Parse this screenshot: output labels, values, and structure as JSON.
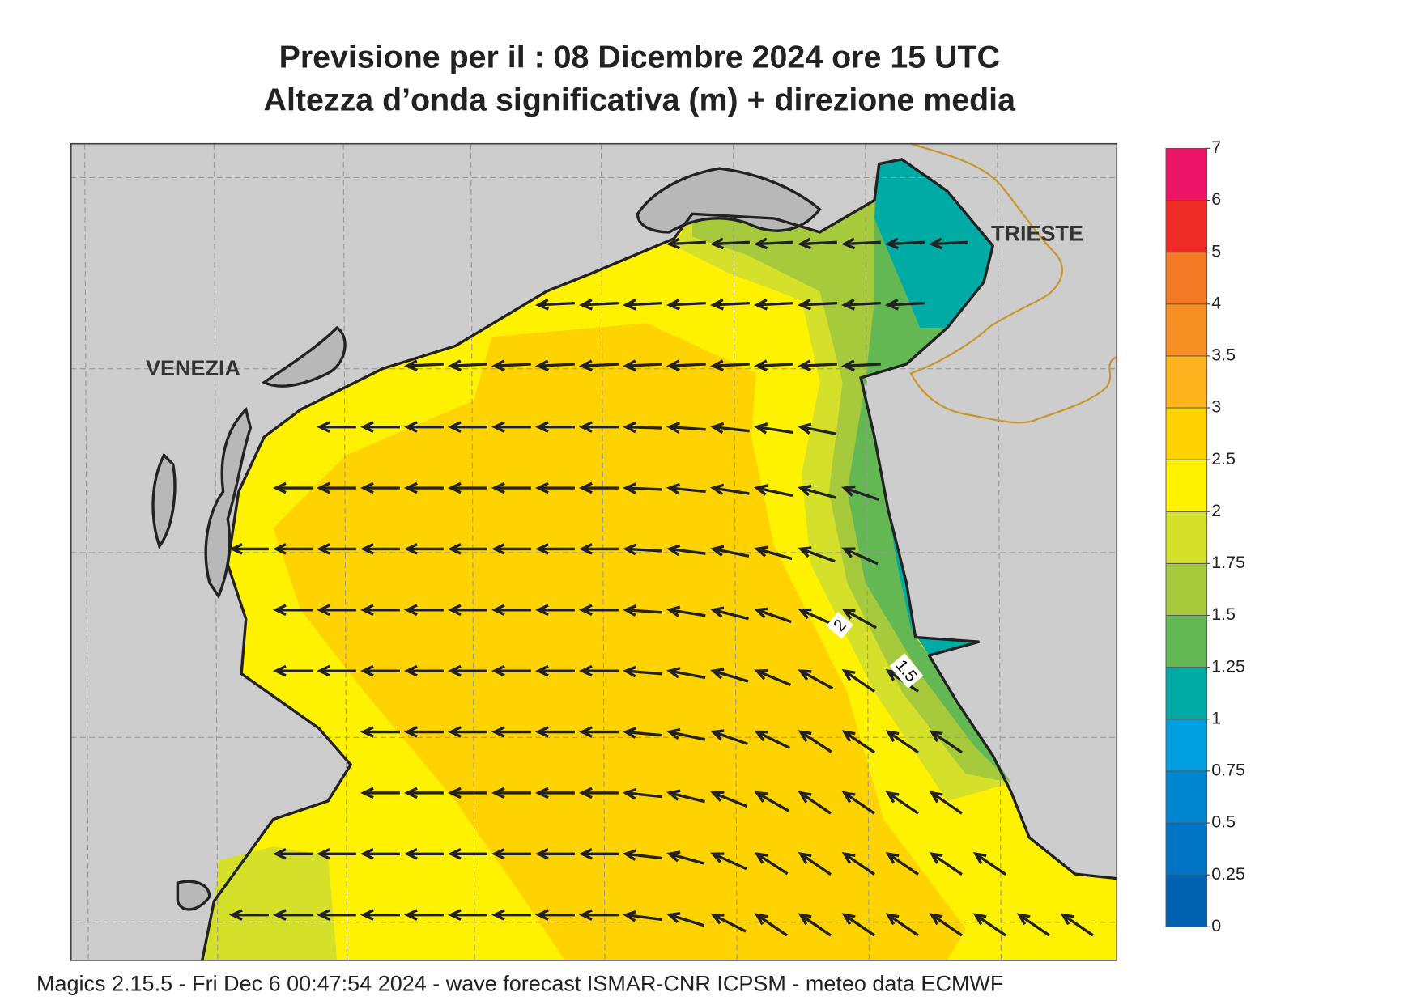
{
  "title": [
    "Previsione per il  :  08 Dicembre  2024   ore 15 UTC",
    "Altezza d’onda significativa (m) + direzione media"
  ],
  "cities": [
    "VENEZIA",
    "TRIESTE"
  ],
  "contour_labels": [
    "2",
    "1.5"
  ],
  "colorbar": {
    "ticks": [
      0,
      0.25,
      0.5,
      0.75,
      1,
      1.25,
      1.5,
      1.75,
      2,
      2.5,
      3,
      3.5,
      4,
      5,
      6,
      7
    ],
    "colors": [
      "#0062b0",
      "#0074c4",
      "#0086d0",
      "#009fe0",
      "#00aaa5",
      "#63b854",
      "#a7c93c",
      "#d5e02b",
      "#fff200",
      "#ffd300",
      "#fdb21e",
      "#f68f22",
      "#f57a25",
      "#ee2b26",
      "#ec1566"
    ]
  },
  "footer": "Magics 2.15.5 - Fri Dec  6 00:47:54 2024 - wave forecast  ISMAR-CNR  ICPSM - meteo data   ECMWF"
}
